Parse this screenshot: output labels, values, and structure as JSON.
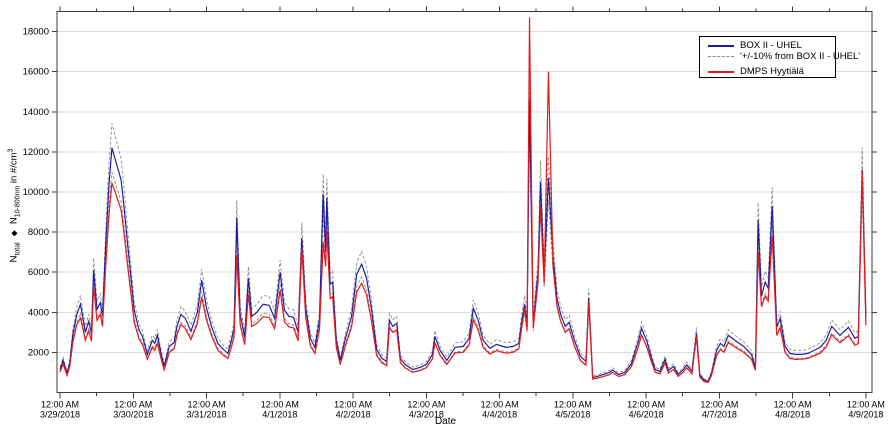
{
  "axis": {
    "y": {
      "n1": "N",
      "n1_sub": "total",
      "diamond": "◆",
      "n2": "N",
      "n2_sub": "10-800nm",
      "suffix": " in #/cm",
      "suffix_sup": "3"
    }
  },
  "chart_data": {
    "type": "line",
    "title": "",
    "xlabel": "Date",
    "ylabel": "N_total / N_10-800nm in #/cm^3",
    "ylim": [
      0,
      19000
    ],
    "y_ticks": [
      2000,
      4000,
      6000,
      8000,
      10000,
      12000,
      14000,
      16000,
      18000
    ],
    "x_range_hours": [
      -1,
      266
    ],
    "x_tick_time_label": "12:00 AM",
    "x_tick_dates": [
      "3/29/2018",
      "3/30/2018",
      "3/31/2018",
      "4/1/2018",
      "4/2/2018",
      "4/3/2018",
      "4/4/2018",
      "4/5/2018",
      "4/6/2018",
      "4/7/2018",
      "4/8/2018",
      "4/9/2018"
    ],
    "x_minor_ticks_hours_offset": 12,
    "grid": "horizontal-only",
    "legend_position": "top-right",
    "x_hours": [
      0,
      1,
      2.3,
      3.2,
      4.2,
      5.5,
      6.7,
      8.3,
      9.4,
      10.3,
      11,
      12.1,
      13.2,
      13.9,
      15,
      16,
      17,
      18.5,
      20,
      21,
      22,
      23,
      24.3,
      25.9,
      27,
      28.6,
      30.2,
      31,
      31.9,
      33,
      34.1,
      35.8,
      37.4,
      38.3,
      39.6,
      41,
      42.9,
      45,
      46.4,
      48,
      49.7,
      51.7,
      53.5,
      55,
      56.2,
      57,
      57.9,
      59,
      60.5,
      61.7,
      62.8,
      64.5,
      66.5,
      68.5,
      70.3,
      72.1,
      73.5,
      75,
      76.5,
      78,
      79.2,
      80.5,
      82,
      83.5,
      85,
      86.2,
      87,
      87.4,
      88.5,
      89.3,
      90.5,
      91.8,
      93.5,
      95.5,
      97.2,
      98.8,
      100.4,
      102.1,
      103.7,
      105.5,
      107,
      107.9,
      109,
      110.3,
      111.5,
      113,
      115.5,
      118,
      120,
      122,
      122.8,
      124.5,
      126.7,
      129.4,
      132.1,
      134,
      135.4,
      137,
      138.6,
      140.8,
      143,
      145,
      146.3,
      148.5,
      150.3,
      151.3,
      152.2,
      153,
      153.8,
      155,
      156.6,
      157.4,
      158.6,
      160,
      161.5,
      162.8,
      164,
      165.5,
      166.8,
      168.5,
      170.5,
      172.3,
      173.2,
      174.5,
      176,
      178,
      180,
      181,
      183,
      185,
      187.2,
      189.4,
      190.5,
      192.2,
      193.8,
      195,
      196.5,
      198.2,
      199.3,
      201,
      202.5,
      204.2,
      205.3,
      207,
      208.5,
      209.6,
      211,
      212.3,
      213.4,
      215.1,
      216.3,
      217.5,
      218.9,
      220.3,
      222,
      224,
      226.5,
      227.8,
      228.7,
      229.8,
      231,
      232,
      233.3,
      234.8,
      235.9,
      237.5,
      239.1,
      241,
      243,
      245,
      247,
      249,
      251,
      252.8,
      255.5,
      258.3,
      260.4,
      261.5,
      262.8,
      264
    ],
    "series": [
      {
        "name": "BOX II - UHEL",
        "color": "#1f1f9e",
        "style": "solid",
        "values": [
          1150,
          1600,
          950,
          1500,
          2900,
          3900,
          4400,
          3000,
          3550,
          2950,
          6100,
          4150,
          4480,
          3800,
          7500,
          10300,
          12200,
          11400,
          10600,
          9200,
          7600,
          6100,
          4100,
          3100,
          2800,
          1900,
          2600,
          2450,
          2850,
          2000,
          1300,
          2300,
          2500,
          3300,
          3900,
          3700,
          3050,
          4000,
          5600,
          4200,
          3250,
          2450,
          2150,
          1950,
          2650,
          3200,
          8700,
          3900,
          2750,
          5700,
          3800,
          4000,
          4400,
          4350,
          3700,
          6000,
          4100,
          3800,
          3750,
          3000,
          7700,
          4200,
          2700,
          2250,
          3650,
          9900,
          7000,
          9700,
          5400,
          5500,
          2600,
          1600,
          2700,
          3800,
          5900,
          6400,
          5700,
          4100,
          2150,
          1700,
          1550,
          3600,
          3300,
          3450,
          1700,
          1400,
          1150,
          1250,
          1400,
          1900,
          2800,
          2100,
          1600,
          2250,
          2300,
          2700,
          4200,
          3600,
          2600,
          2200,
          2400,
          2300,
          2250,
          2300,
          2450,
          3600,
          4400,
          3300,
          14600,
          3400,
          6000,
          10500,
          5800,
          10700,
          6800,
          4700,
          3900,
          3300,
          3500,
          2600,
          1800,
          1550,
          4700,
          750,
          800,
          900,
          1000,
          1120,
          900,
          1000,
          1450,
          2530,
          3200,
          2570,
          1700,
          1150,
          1050,
          1650,
          1100,
          1300,
          900,
          1150,
          1380,
          1050,
          2950,
          870,
          620,
          560,
          950,
          2100,
          2450,
          2300,
          2850,
          2700,
          2500,
          2300,
          1900,
          1250,
          8600,
          4800,
          5500,
          5200,
          9300,
          3250,
          3700,
          2300,
          1950,
          1900,
          1900,
          1950,
          2100,
          2250,
          2600,
          3300,
          2850,
          3250,
          2700,
          2800,
          11100,
          3800
        ]
      },
      {
        "name": "'+/-10% from BOX II - UHEL'",
        "color": "#8c8c8c",
        "style": "dashed",
        "derived_from_series": 0,
        "percent": 10
      },
      {
        "name": "DMPS Hyytiälä",
        "color": "#e41a1a",
        "style": "solid",
        "values": [
          1020,
          1420,
          850,
          1330,
          2520,
          3400,
          3720,
          2600,
          3080,
          2560,
          5300,
          3600,
          3900,
          3300,
          6400,
          8800,
          10450,
          9800,
          9100,
          7900,
          6500,
          5200,
          3500,
          2650,
          2400,
          1650,
          2250,
          2100,
          2450,
          1740,
          1130,
          2000,
          2180,
          2850,
          3400,
          3200,
          2640,
          3450,
          4750,
          3600,
          2800,
          2110,
          1860,
          1690,
          2300,
          2780,
          6850,
          3380,
          2380,
          4900,
          3290,
          3450,
          3780,
          3740,
          3180,
          5100,
          3520,
          3270,
          3220,
          2570,
          7250,
          3700,
          2330,
          1940,
          3140,
          7500,
          6300,
          8050,
          4680,
          4780,
          2250,
          1390,
          2330,
          3270,
          5020,
          5450,
          4870,
          3500,
          1850,
          1470,
          1340,
          3270,
          3000,
          3120,
          1490,
          1230,
          1010,
          1100,
          1240,
          1680,
          2480,
          1840,
          1400,
          1970,
          2010,
          2360,
          3620,
          3110,
          2250,
          1920,
          2090,
          2000,
          1960,
          2010,
          2180,
          3320,
          4200,
          3120,
          18700,
          3220,
          5560,
          9300,
          5420,
          16000,
          6320,
          4320,
          3560,
          3010,
          3190,
          2330,
          1590,
          1360,
          4500,
          670,
          715,
          800,
          890,
          1000,
          800,
          890,
          1290,
          2240,
          2870,
          2270,
          1500,
          1010,
          930,
          1470,
          970,
          1150,
          800,
          1020,
          1230,
          930,
          2840,
          770,
          545,
          495,
          845,
          1840,
          2140,
          2010,
          2490,
          2350,
          2180,
          2000,
          1660,
          1100,
          7000,
          4280,
          4810,
          4550,
          7800,
          2840,
          3230,
          2010,
          1700,
          1650,
          1660,
          1700,
          1830,
          1960,
          2270,
          2880,
          2480,
          2830,
          2350,
          2440,
          11000,
          3350
        ]
      }
    ]
  }
}
